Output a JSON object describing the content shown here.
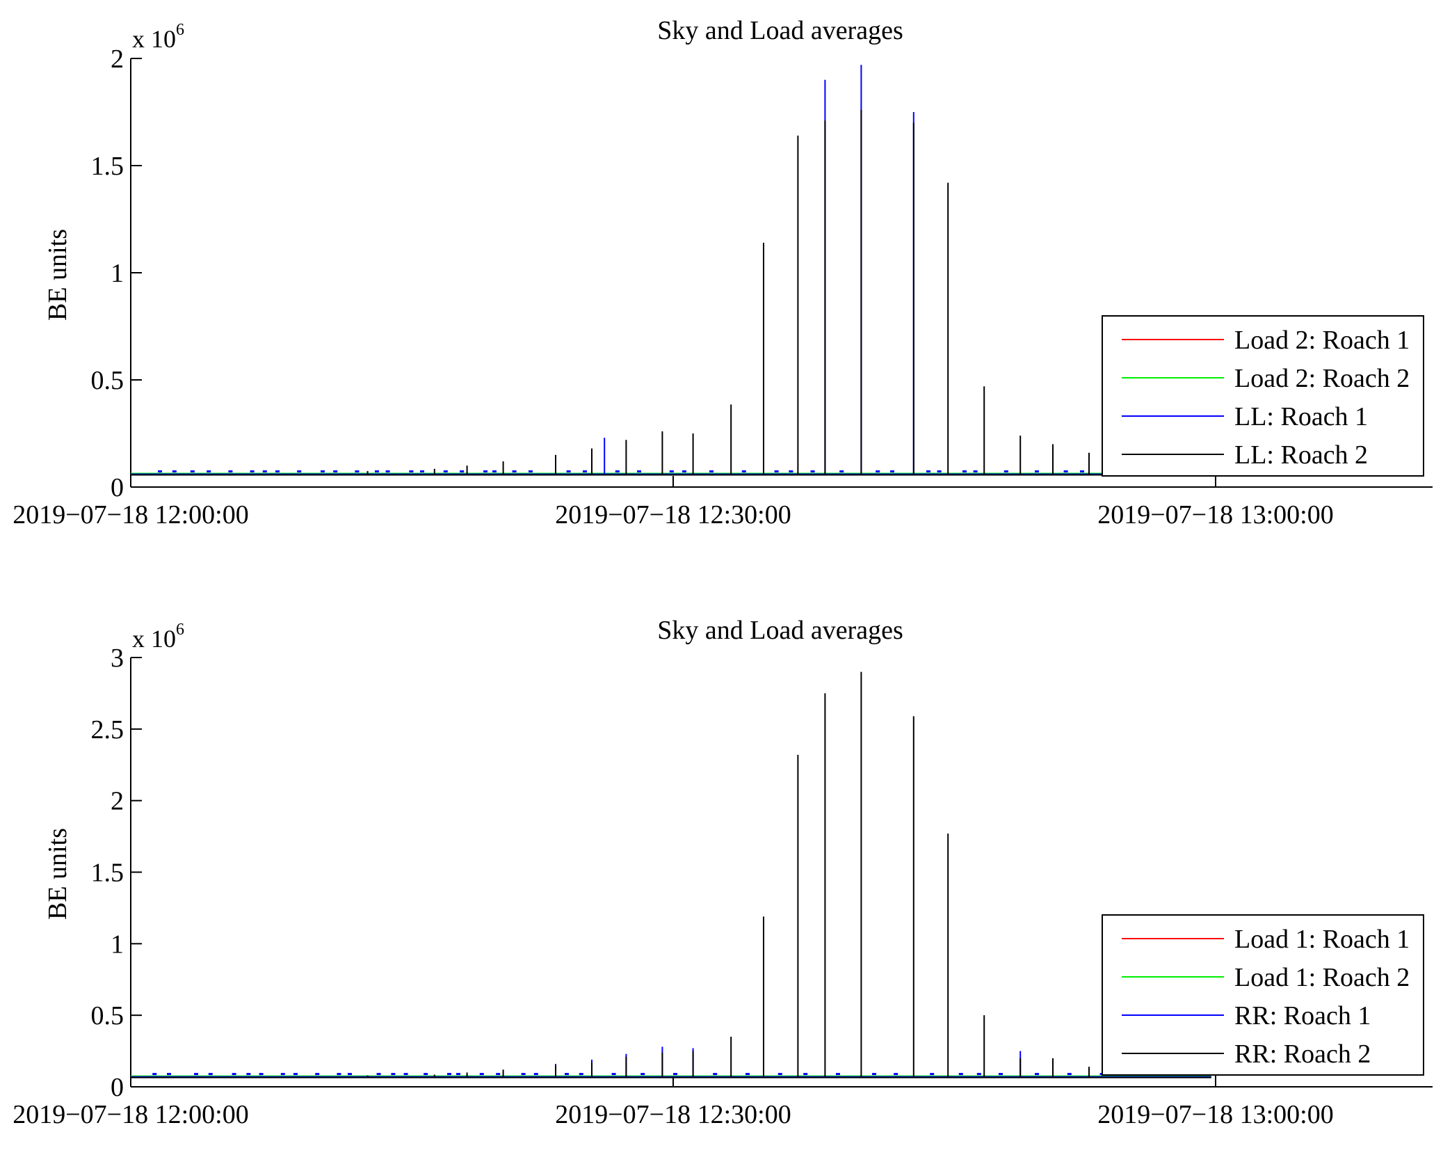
{
  "figure": {
    "panel_count": 2
  },
  "chart_data": [
    {
      "type": "line",
      "title": "Sky and Load averages",
      "xlabel": "",
      "ylabel": "BE units",
      "y_exponent_label": "x 10",
      "y_exponent_power": "6",
      "ylim": [
        0,
        2000000
      ],
      "y_ticks": [
        {
          "value": 0,
          "label": "0"
        },
        {
          "value": 500000,
          "label": "0.5"
        },
        {
          "value": 1000000,
          "label": "1"
        },
        {
          "value": 1500000,
          "label": "1.5"
        },
        {
          "value": 2000000,
          "label": "2"
        }
      ],
      "xlim_minutes": [
        0,
        72
      ],
      "x_ticks": [
        {
          "value": 0,
          "label": "2019−07−18 12:00:00"
        },
        {
          "value": 30,
          "label": "2019−07−18 12:30:00"
        },
        {
          "value": 60,
          "label": "2019−07−18 13:00:00"
        }
      ],
      "baseline": 60000,
      "legend_location": "lower-right",
      "series": [
        {
          "name": "Load 2: Roach 1",
          "color": "#ff0000"
        },
        {
          "name": "Load 2: Roach 2",
          "color": "#00ee00"
        },
        {
          "name": "LL: Roach 1",
          "color": "#0000ff"
        },
        {
          "name": "LL: Roach 2",
          "color": "#000000"
        }
      ],
      "spikes_blue": [
        {
          "t": 26.2,
          "v": 230000
        },
        {
          "t": 38.4,
          "v": 1900000
        },
        {
          "t": 40.4,
          "v": 1970000
        },
        {
          "t": 43.3,
          "v": 1750000
        }
      ],
      "spikes_black": [
        {
          "t": 13.1,
          "v": 75000
        },
        {
          "t": 16.8,
          "v": 85000
        },
        {
          "t": 18.6,
          "v": 100000
        },
        {
          "t": 20.6,
          "v": 120000
        },
        {
          "t": 23.5,
          "v": 150000
        },
        {
          "t": 25.5,
          "v": 180000
        },
        {
          "t": 27.4,
          "v": 220000
        },
        {
          "t": 29.4,
          "v": 260000
        },
        {
          "t": 31.1,
          "v": 250000
        },
        {
          "t": 33.2,
          "v": 385000
        },
        {
          "t": 35.0,
          "v": 1140000
        },
        {
          "t": 36.9,
          "v": 1640000
        },
        {
          "t": 38.4,
          "v": 1710000
        },
        {
          "t": 40.4,
          "v": 1760000
        },
        {
          "t": 43.3,
          "v": 1700000
        },
        {
          "t": 45.2,
          "v": 1420000
        },
        {
          "t": 47.2,
          "v": 470000
        },
        {
          "t": 49.2,
          "v": 240000
        },
        {
          "t": 51.0,
          "v": 200000
        },
        {
          "t": 53.0,
          "v": 160000
        }
      ],
      "blue_marks": [
        1.5,
        2.3,
        3.3,
        4.2,
        5.4,
        6.6,
        7.3,
        8.0,
        9.2,
        10.5,
        11.2,
        12.4,
        13.5,
        14.1,
        15.4,
        16.0,
        17.3,
        18.2,
        19.5,
        20.0,
        21.1,
        22.0,
        24.1,
        25.0,
        26.8,
        28.0,
        29.8,
        30.5,
        32.0,
        33.8,
        35.6,
        36.4,
        37.6,
        39.2,
        41.2,
        42.0,
        44.0,
        44.6,
        46.0,
        46.6,
        48.3,
        50.0,
        51.6,
        52.5,
        53.8
      ]
    },
    {
      "type": "line",
      "title": "Sky and Load averages",
      "xlabel": "",
      "ylabel": "BE units",
      "y_exponent_label": "x 10",
      "y_exponent_power": "6",
      "ylim": [
        0,
        3000000
      ],
      "y_ticks": [
        {
          "value": 0,
          "label": "0"
        },
        {
          "value": 500000,
          "label": "0.5"
        },
        {
          "value": 1000000,
          "label": "1"
        },
        {
          "value": 1500000,
          "label": "1.5"
        },
        {
          "value": 2000000,
          "label": "2"
        },
        {
          "value": 2500000,
          "label": "2.5"
        },
        {
          "value": 3000000,
          "label": "3"
        }
      ],
      "xlim_minutes": [
        0,
        72
      ],
      "x_ticks": [
        {
          "value": 0,
          "label": "2019−07−18 12:00:00"
        },
        {
          "value": 30,
          "label": "2019−07−18 12:30:00"
        },
        {
          "value": 60,
          "label": "2019−07−18 13:00:00"
        }
      ],
      "baseline": 70000,
      "legend_location": "lower-right",
      "series": [
        {
          "name": "Load 1: Roach 1",
          "color": "#ff0000"
        },
        {
          "name": "Load 1: Roach 2",
          "color": "#00ee00"
        },
        {
          "name": "RR: Roach 1",
          "color": "#0000ff"
        },
        {
          "name": "RR: Roach 2",
          "color": "#000000"
        }
      ],
      "spikes_blue": [
        {
          "t": 23.5,
          "v": 160000
        },
        {
          "t": 25.5,
          "v": 190000
        },
        {
          "t": 27.4,
          "v": 230000
        },
        {
          "t": 29.4,
          "v": 280000
        },
        {
          "t": 31.1,
          "v": 270000
        },
        {
          "t": 49.2,
          "v": 250000
        }
      ],
      "spikes_black": [
        {
          "t": 13.1,
          "v": 80000
        },
        {
          "t": 16.8,
          "v": 85000
        },
        {
          "t": 18.6,
          "v": 100000
        },
        {
          "t": 20.6,
          "v": 120000
        },
        {
          "t": 23.5,
          "v": 150000
        },
        {
          "t": 25.5,
          "v": 170000
        },
        {
          "t": 27.4,
          "v": 210000
        },
        {
          "t": 29.4,
          "v": 240000
        },
        {
          "t": 31.1,
          "v": 250000
        },
        {
          "t": 33.2,
          "v": 350000
        },
        {
          "t": 35.0,
          "v": 1190000
        },
        {
          "t": 36.9,
          "v": 2320000
        },
        {
          "t": 38.4,
          "v": 2750000
        },
        {
          "t": 40.4,
          "v": 2900000
        },
        {
          "t": 43.3,
          "v": 2590000
        },
        {
          "t": 45.2,
          "v": 1770000
        },
        {
          "t": 47.2,
          "v": 500000
        },
        {
          "t": 49.2,
          "v": 200000
        },
        {
          "t": 51.0,
          "v": 200000
        },
        {
          "t": 53.0,
          "v": 140000
        }
      ],
      "blue_marks": [
        1.2,
        2.0,
        3.5,
        4.3,
        5.6,
        6.4,
        7.1,
        8.3,
        9.0,
        10.2,
        11.4,
        12.0,
        13.6,
        14.4,
        15.1,
        16.2,
        17.5,
        18.0,
        19.3,
        20.2,
        21.6,
        22.3,
        24.0,
        24.8,
        26.6,
        28.2,
        30.0,
        32.2,
        34.0,
        35.8,
        37.2,
        39.0,
        41.0,
        42.2,
        44.2,
        45.8,
        46.8,
        48.0,
        50.0,
        51.8,
        53.6,
        55.0,
        56.4,
        58.0,
        59.2
      ]
    }
  ]
}
